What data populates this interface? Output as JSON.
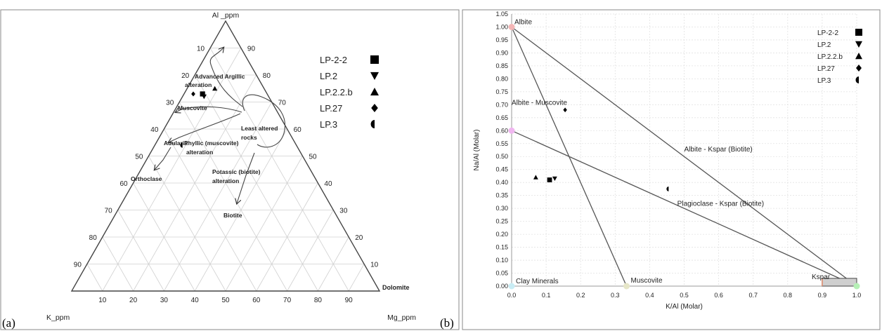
{
  "panels": {
    "a_label": "(a)",
    "b_label": "(b)"
  },
  "chart_data": [
    {
      "type": "ternary",
      "corners": {
        "top": "Al _ppm",
        "left": "K_ppm",
        "right": "Mg_ppm"
      },
      "ticks": [
        "10",
        "20",
        "30",
        "40",
        "50",
        "60",
        "70",
        "80",
        "90"
      ],
      "extra_labels": {
        "right_corner": "Dolomite"
      },
      "grid": true,
      "legend": {
        "placement": "top-right",
        "entries": [
          {
            "name": "LP-2-2",
            "marker": "square"
          },
          {
            "name": "LP.2",
            "marker": "triangle-down"
          },
          {
            "name": "LP.2.2.b",
            "marker": "triangle-up"
          },
          {
            "name": "LP.27",
            "marker": "diamond"
          },
          {
            "name": "LP.3",
            "marker": "half-circle"
          }
        ]
      },
      "field_labels": [
        "Advanced Argillic",
        "alteration",
        "Muscovite",
        "Least altered",
        "rocks",
        "Adularia",
        "Phyllic (muscovite)",
        "alteration",
        "Orthoclase",
        "Potassic (biotite)",
        "alteration",
        "Biotite"
      ],
      "points": [
        {
          "name": "LP-2-2",
          "marker": "square",
          "al": 73,
          "k": 21,
          "mg": 6
        },
        {
          "name": "LP.2",
          "marker": "triangle-down",
          "al": 72,
          "k": 21,
          "mg": 7
        },
        {
          "name": "LP.2.2.b",
          "marker": "triangle-up",
          "al": 75,
          "k": 16,
          "mg": 9
        },
        {
          "name": "LP.27",
          "marker": "diamond",
          "al": 73,
          "k": 24,
          "mg": 3
        },
        {
          "name": "LP.3",
          "marker": "half-circle",
          "al": 54,
          "k": 37,
          "mg": 9
        }
      ]
    },
    {
      "type": "scatter",
      "xlabel": "K/Al (Molar)",
      "ylabel": "Na/Al (Molar)",
      "xlim": [
        0,
        1.0
      ],
      "ylim": [
        0,
        1.05
      ],
      "xticks": [
        "0.0",
        "0.1",
        "0.2",
        "0.3",
        "0.4",
        "0.5",
        "0.6",
        "0.7",
        "0.8",
        "0.9",
        "1.0"
      ],
      "yticks": [
        "0.00",
        "0.05",
        "0.10",
        "0.15",
        "0.20",
        "0.25",
        "0.30",
        "0.35",
        "0.40",
        "0.45",
        "0.50",
        "0.55",
        "0.60",
        "0.65",
        "0.70",
        "0.75",
        "0.80",
        "0.85",
        "0.90",
        "0.95",
        "1.00",
        "1.05"
      ],
      "grid": true,
      "legend": {
        "placement": "top-right",
        "entries": [
          {
            "name": "LP-2-2",
            "marker": "square"
          },
          {
            "name": "LP.2",
            "marker": "triangle-down"
          },
          {
            "name": "LP.2.2.b",
            "marker": "triangle-up"
          },
          {
            "name": "LP.27",
            "marker": "diamond"
          },
          {
            "name": "LP.3",
            "marker": "half-circle"
          }
        ]
      },
      "reference_points": [
        {
          "label": "Albite",
          "x": 0.0,
          "y": 1.0,
          "color": "#f4b6b6"
        },
        {
          "label": "",
          "x": 0.0,
          "y": 0.6,
          "color": "#f0b6f0"
        },
        {
          "label": "Muscovite",
          "x": 0.333,
          "y": 0.0,
          "color": "#e6e6c8"
        },
        {
          "label": "Kspar",
          "x": 1.0,
          "y": 0.0,
          "color": "#b6f0b6"
        },
        {
          "label": "Clay Minerals",
          "x": 0.0,
          "y": 0.0,
          "color": "#c8ecf4"
        }
      ],
      "lines": [
        {
          "from": [
            0.0,
            1.0
          ],
          "to": [
            1.0,
            0.0
          ]
        },
        {
          "from": [
            0.0,
            1.0
          ],
          "to": [
            0.333,
            0.0
          ]
        },
        {
          "from": [
            0.0,
            0.6
          ],
          "to": [
            1.0,
            0.0
          ]
        }
      ],
      "kspar_box": {
        "x": [
          0.9,
          1.0
        ],
        "y": [
          0.0,
          0.03
        ]
      },
      "field_labels": [
        {
          "text": "Albite - Muscovite",
          "x": 0.0,
          "y": 0.7
        },
        {
          "text": "Albite - Kspar (Biotite)",
          "x": 0.5,
          "y": 0.52
        },
        {
          "text": "Plagioclase - Kspar (Biotite)",
          "x": 0.48,
          "y": 0.31
        }
      ],
      "points": [
        {
          "name": "LP-2-2",
          "marker": "square",
          "x": 0.11,
          "y": 0.41
        },
        {
          "name": "LP.2",
          "marker": "triangle-down",
          "x": 0.125,
          "y": 0.415
        },
        {
          "name": "LP.2.2.b",
          "marker": "triangle-up",
          "x": 0.07,
          "y": 0.42
        },
        {
          "name": "LP.27",
          "marker": "diamond",
          "x": 0.155,
          "y": 0.68
        },
        {
          "name": "LP.3",
          "marker": "half-circle",
          "x": 0.455,
          "y": 0.375
        }
      ]
    }
  ]
}
